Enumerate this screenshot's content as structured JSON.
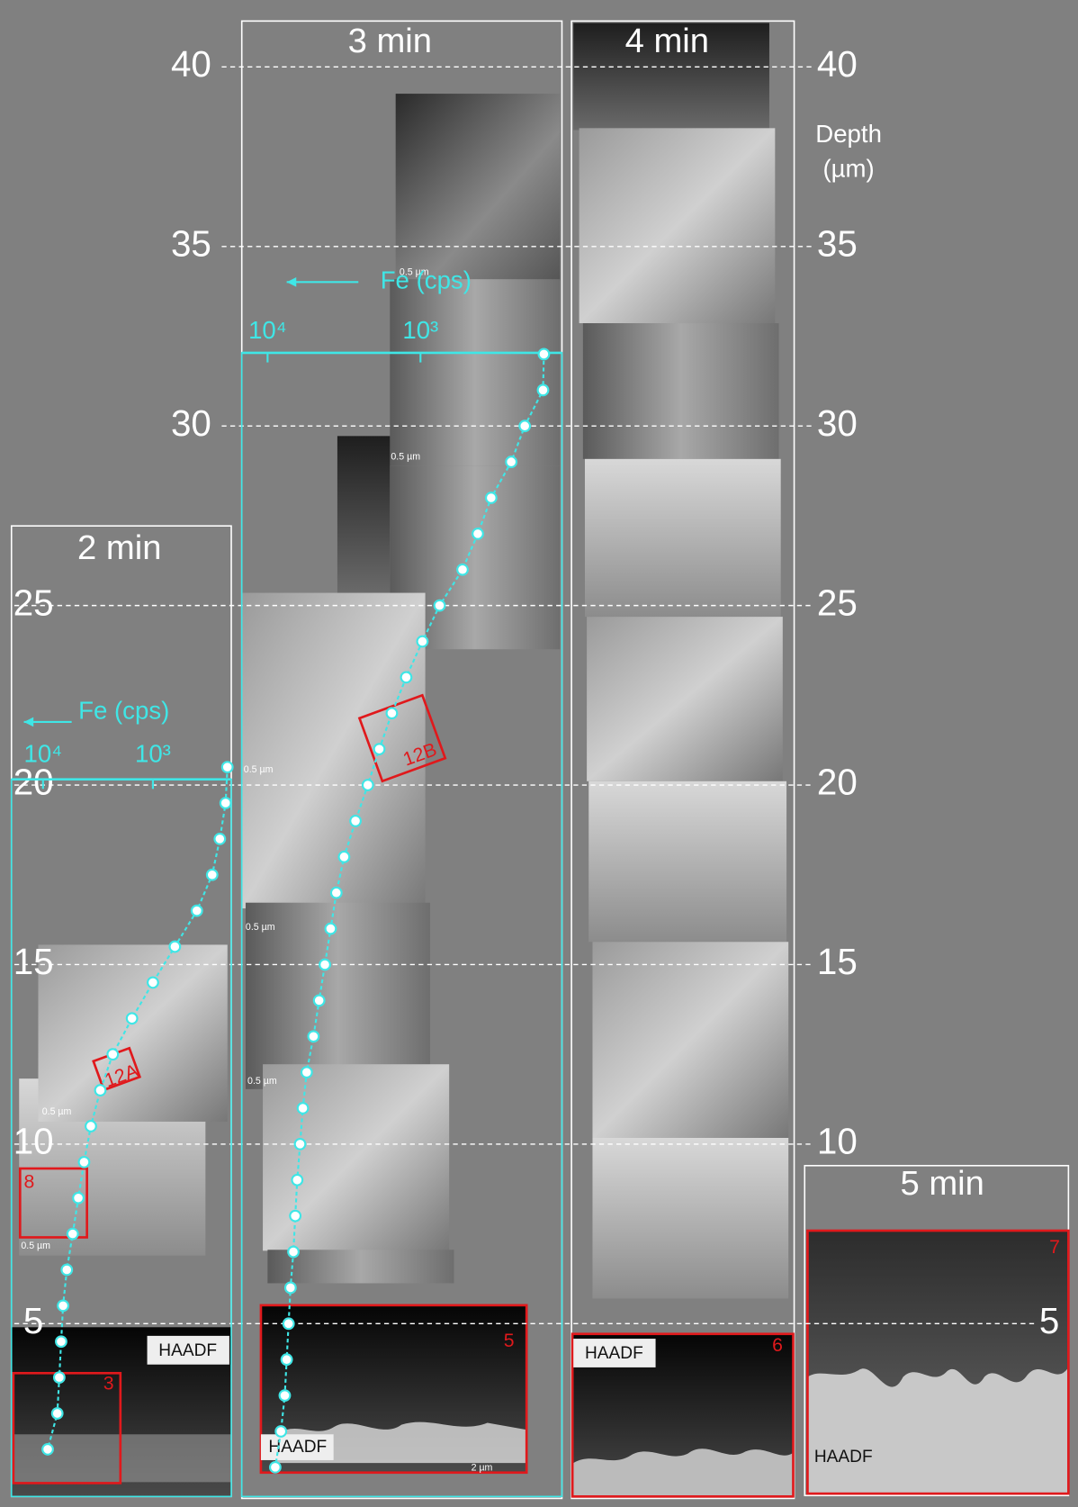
{
  "depth_axis": {
    "label": [
      "Depth",
      "(µm)"
    ],
    "ticks": [
      40,
      35,
      30,
      25,
      20,
      15,
      10,
      5
    ]
  },
  "panels": [
    {
      "title": "2 min"
    },
    {
      "title": "3 min"
    },
    {
      "title": "4 min"
    },
    {
      "title": "5 min"
    }
  ],
  "fe_profiles": [
    {
      "label": "Fe (cps)",
      "ticks": [
        {
          "value": 10000,
          "label": "10⁴"
        },
        {
          "value": 1000,
          "label": "10³"
        }
      ],
      "depth": [
        20.5,
        19.5,
        18.5,
        17.5,
        16.5,
        15.5,
        14.5,
        13.5,
        12.5,
        11.5,
        10.5,
        9.5,
        8.5,
        7.5,
        6.5,
        5.5,
        4.5,
        3.5,
        2.5,
        1.5
      ],
      "fe": [
        210,
        218,
        246,
        289,
        398,
        631,
        1000,
        1550,
        2320,
        3010,
        3670,
        4230,
        4770,
        5370,
        6070,
        6570,
        6840,
        7110,
        7410,
        9060
      ]
    },
    {
      "label": "Fe (cps)",
      "ticks": [
        {
          "value": 10000,
          "label": "10⁴"
        },
        {
          "value": 1000,
          "label": "10³"
        }
      ],
      "depth": [
        32,
        31,
        30,
        29,
        28,
        27,
        26,
        25,
        24,
        23,
        22,
        21,
        20,
        19,
        18,
        17,
        16,
        15,
        14,
        13,
        12,
        11,
        10,
        9,
        8,
        7,
        6,
        5,
        4,
        3,
        2,
        1
      ],
      "fe": [
        156,
        158,
        208,
        255,
        345,
        422,
        531,
        750,
        972,
        1240,
        1540,
        1860,
        2210,
        2660,
        3160,
        3550,
        3870,
        4220,
        4600,
        5010,
        5550,
        5880,
        6130,
        6400,
        6590,
        6780,
        7080,
        7290,
        7500,
        7720,
        8180,
        8910
      ]
    }
  ],
  "image_labels": {
    "haadf": [
      "HAADF",
      "HAADF",
      "HAADF",
      "HAADF"
    ],
    "regions": [
      "3",
      "8",
      "12A",
      "12B",
      "5",
      "6",
      "7"
    ],
    "scale_bars": [
      "0.5 µm",
      "0.5 µm",
      "0.5 µm",
      "0.5 µm",
      "0.5 µm",
      "0.5 µm",
      "0.5 µm",
      "2 µm"
    ]
  }
}
